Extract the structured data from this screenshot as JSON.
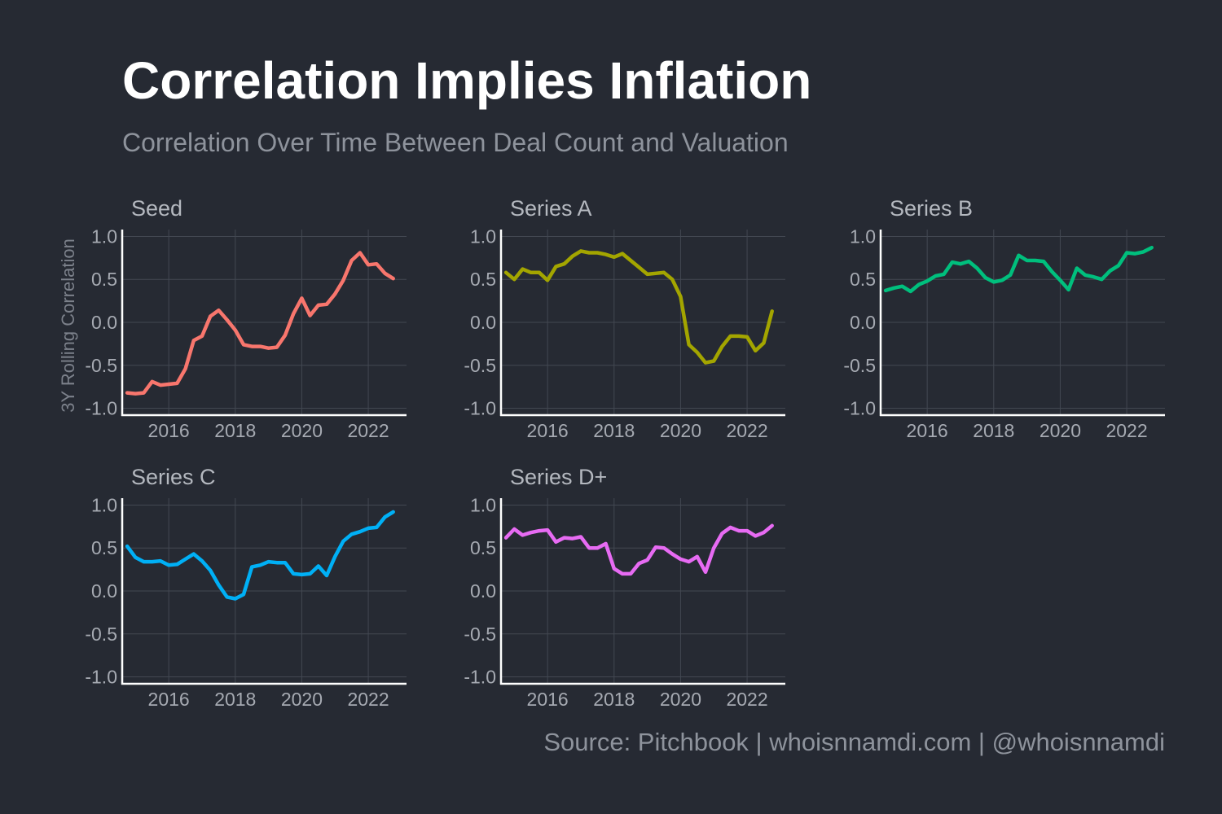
{
  "title": "Correlation Implies Inflation",
  "subtitle": "Correlation Over Time Between Deal Count and Valuation",
  "caption": "Source: Pitchbook | whoisnnamdi.com | @whoisnnamdi",
  "chart_data": {
    "type": "line",
    "ylabel": "3Y Rolling Correlation",
    "xlabel": "",
    "grid": true,
    "xlim": [
      2014.6,
      2023.15
    ],
    "ylim": [
      -1.08,
      1.08
    ],
    "x_ticks": [
      2016,
      2018,
      2020,
      2022
    ],
    "y_ticks": [
      -1.0,
      -0.5,
      0.0,
      0.5,
      1.0
    ],
    "y_tick_labels": [
      "-1.0",
      "-0.5",
      "0.0",
      "0.5",
      "1.0"
    ],
    "panels": [
      {
        "name": "Seed",
        "color": "#f8766d",
        "x": [
          2014.75,
          2015.0,
          2015.25,
          2015.5,
          2015.75,
          2016.0,
          2016.25,
          2016.5,
          2016.75,
          2017.0,
          2017.25,
          2017.5,
          2017.75,
          2018.0,
          2018.25,
          2018.5,
          2018.75,
          2019.0,
          2019.25,
          2019.5,
          2019.75,
          2020.0,
          2020.25,
          2020.5,
          2020.75,
          2021.0,
          2021.25,
          2021.5,
          2021.75,
          2022.0,
          2022.25,
          2022.5,
          2022.75
        ],
        "y": [
          -0.82,
          -0.83,
          -0.82,
          -0.69,
          -0.73,
          -0.72,
          -0.71,
          -0.54,
          -0.21,
          -0.16,
          0.07,
          0.14,
          0.03,
          -0.09,
          -0.26,
          -0.28,
          -0.28,
          -0.3,
          -0.29,
          -0.15,
          0.1,
          0.28,
          0.08,
          0.2,
          0.21,
          0.33,
          0.49,
          0.72,
          0.81,
          0.67,
          0.68,
          0.57,
          0.51
        ]
      },
      {
        "name": "Series A",
        "color": "#a3a500",
        "x": [
          2014.75,
          2015.0,
          2015.25,
          2015.5,
          2015.75,
          2016.0,
          2016.25,
          2016.5,
          2016.75,
          2017.0,
          2017.25,
          2017.5,
          2017.75,
          2018.0,
          2018.25,
          2018.5,
          2018.75,
          2019.0,
          2019.25,
          2019.5,
          2019.75,
          2020.0,
          2020.25,
          2020.5,
          2020.75,
          2021.0,
          2021.25,
          2021.5,
          2021.75,
          2022.0,
          2022.25,
          2022.5,
          2022.75
        ],
        "y": [
          0.58,
          0.5,
          0.62,
          0.58,
          0.58,
          0.49,
          0.65,
          0.68,
          0.77,
          0.83,
          0.81,
          0.81,
          0.79,
          0.76,
          0.8,
          0.72,
          0.64,
          0.56,
          0.57,
          0.58,
          0.5,
          0.3,
          -0.26,
          -0.35,
          -0.47,
          -0.45,
          -0.28,
          -0.16,
          -0.16,
          -0.17,
          -0.33,
          -0.24,
          0.13
        ]
      },
      {
        "name": "Series B",
        "color": "#00bf7d",
        "x": [
          2014.75,
          2015.0,
          2015.25,
          2015.5,
          2015.75,
          2016.0,
          2016.25,
          2016.5,
          2016.75,
          2017.0,
          2017.25,
          2017.5,
          2017.75,
          2018.0,
          2018.25,
          2018.5,
          2018.75,
          2019.0,
          2019.25,
          2019.5,
          2019.75,
          2020.0,
          2020.25,
          2020.5,
          2020.75,
          2021.0,
          2021.25,
          2021.5,
          2021.75,
          2022.0,
          2022.25,
          2022.5,
          2022.75
        ],
        "y": [
          0.37,
          0.4,
          0.42,
          0.36,
          0.44,
          0.48,
          0.54,
          0.56,
          0.7,
          0.68,
          0.71,
          0.63,
          0.52,
          0.47,
          0.49,
          0.55,
          0.78,
          0.72,
          0.72,
          0.71,
          0.59,
          0.49,
          0.38,
          0.63,
          0.55,
          0.53,
          0.5,
          0.6,
          0.66,
          0.81,
          0.8,
          0.82,
          0.87
        ]
      },
      {
        "name": "Series C",
        "color": "#00b0f6",
        "x": [
          2014.75,
          2015.0,
          2015.25,
          2015.5,
          2015.75,
          2016.0,
          2016.25,
          2016.5,
          2016.75,
          2017.0,
          2017.25,
          2017.5,
          2017.75,
          2018.0,
          2018.25,
          2018.5,
          2018.75,
          2019.0,
          2019.25,
          2019.5,
          2019.75,
          2020.0,
          2020.25,
          2020.5,
          2020.75,
          2021.0,
          2021.25,
          2021.5,
          2021.75,
          2022.0,
          2022.25,
          2022.5,
          2022.75
        ],
        "y": [
          0.52,
          0.39,
          0.34,
          0.34,
          0.35,
          0.3,
          0.31,
          0.37,
          0.43,
          0.35,
          0.24,
          0.07,
          -0.07,
          -0.09,
          -0.04,
          0.28,
          0.3,
          0.34,
          0.33,
          0.33,
          0.2,
          0.19,
          0.2,
          0.29,
          0.18,
          0.4,
          0.58,
          0.66,
          0.69,
          0.73,
          0.74,
          0.86,
          0.92
        ]
      },
      {
        "name": "Series D+",
        "color": "#e76bf3",
        "x": [
          2014.75,
          2015.0,
          2015.25,
          2015.5,
          2015.75,
          2016.0,
          2016.25,
          2016.5,
          2016.75,
          2017.0,
          2017.25,
          2017.5,
          2017.75,
          2018.0,
          2018.25,
          2018.5,
          2018.75,
          2019.0,
          2019.25,
          2019.5,
          2019.75,
          2020.0,
          2020.25,
          2020.5,
          2020.75,
          2021.0,
          2021.25,
          2021.5,
          2021.75,
          2022.0,
          2022.25,
          2022.5,
          2022.75
        ],
        "y": [
          0.62,
          0.72,
          0.65,
          0.68,
          0.7,
          0.71,
          0.57,
          0.62,
          0.61,
          0.63,
          0.5,
          0.5,
          0.55,
          0.26,
          0.2,
          0.2,
          0.32,
          0.36,
          0.51,
          0.5,
          0.43,
          0.37,
          0.34,
          0.4,
          0.22,
          0.5,
          0.67,
          0.74,
          0.7,
          0.7,
          0.64,
          0.68,
          0.76
        ]
      }
    ]
  }
}
